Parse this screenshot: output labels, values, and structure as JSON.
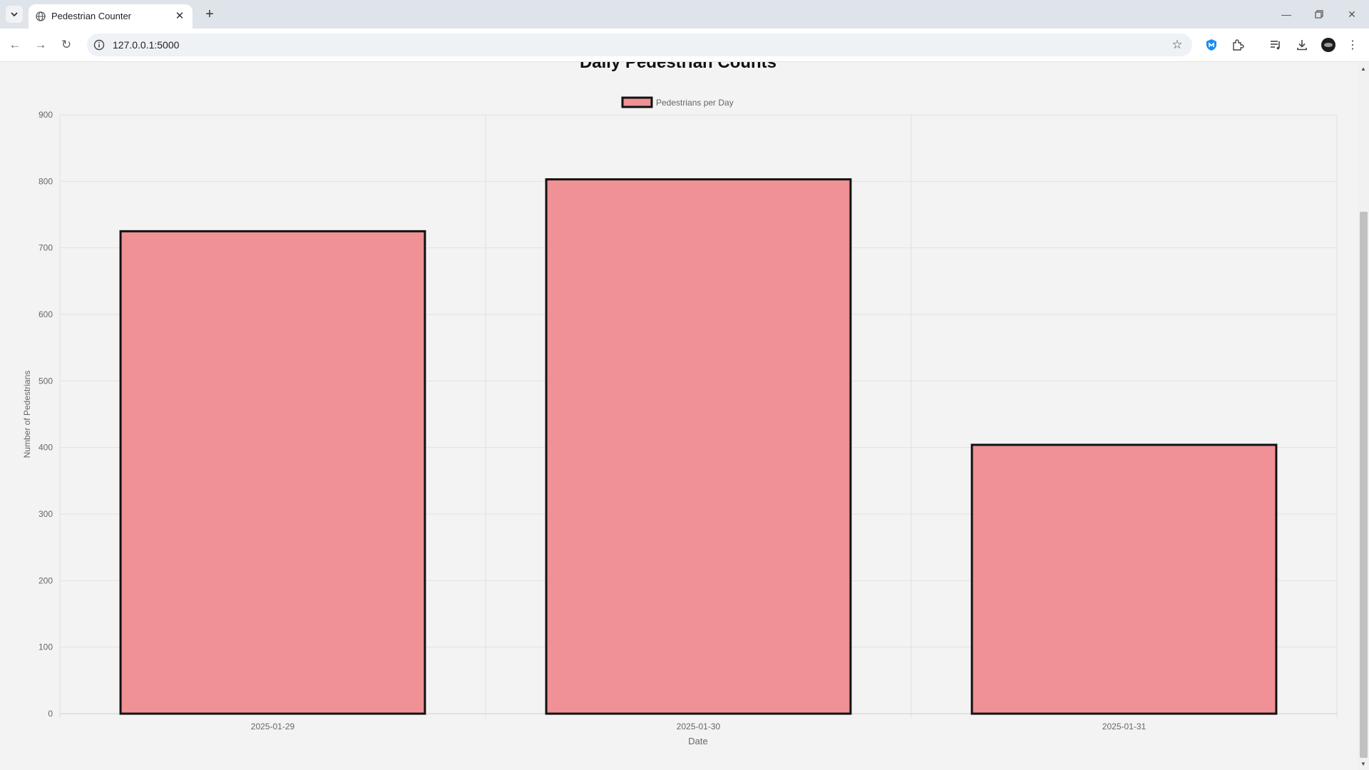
{
  "browser": {
    "tab_title": "Pedestrian Counter",
    "url": "127.0.0.1:5000"
  },
  "colors": {
    "bar_fill": "#ef9195",
    "bar_border": "#111111",
    "grid": "#e2e2e2",
    "page_bg": "#f3f3f3"
  },
  "chart_data": {
    "type": "bar",
    "title": "Daily Pedestrian Counts",
    "xlabel": "Date",
    "ylabel": "Number of Pedestrians",
    "categories": [
      "2025-01-29",
      "2025-01-30",
      "2025-01-31"
    ],
    "series": [
      {
        "name": "Pedestrians per Day",
        "values": [
          725,
          803,
          404
        ]
      }
    ],
    "ylim": [
      0,
      900
    ],
    "yticks": [
      "0",
      "100",
      "200",
      "300",
      "400",
      "500",
      "600",
      "700",
      "800",
      "900"
    ],
    "grid": true,
    "legend_position": "top-center"
  }
}
